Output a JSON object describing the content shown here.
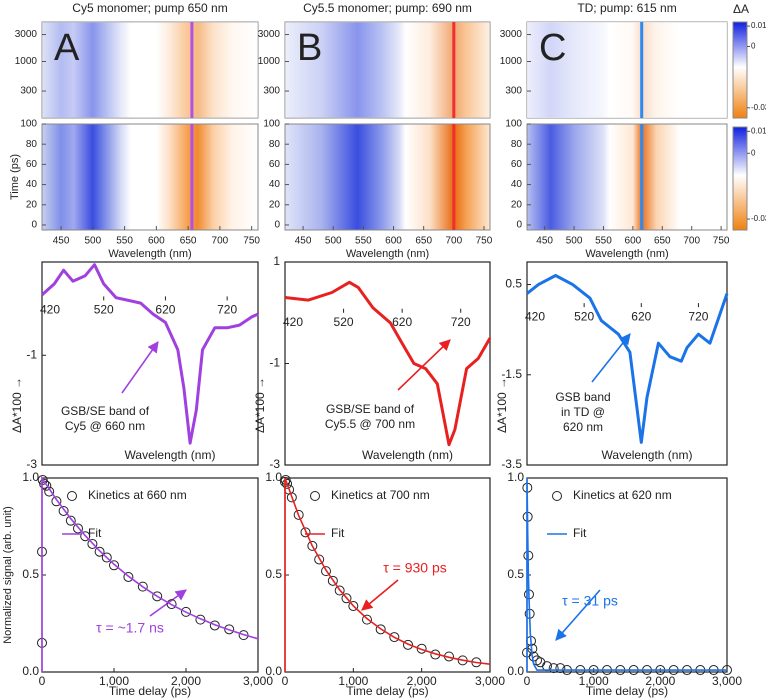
{
  "chart_data": [
    {
      "type": "heatmap",
      "title": "Cy5 monomer; pump 650 nm",
      "panel_label": "A",
      "xlabel": "Wavelength (nm)",
      "ylabel": "Time (ps)",
      "xlim": [
        420,
        760
      ],
      "xticks": [
        450,
        500,
        550,
        600,
        650,
        700,
        750
      ],
      "log_panel": {
        "ylim": [
          100,
          5000
        ],
        "yticks": [
          300,
          1000,
          3000
        ],
        "log": true
      },
      "ylim": [
        -5,
        100
      ],
      "yticks": [
        0,
        20,
        40,
        60,
        80,
        100
      ],
      "pump_line": 656,
      "pump_color": "#b050e8"
    },
    {
      "type": "heatmap",
      "title": "Cy5.5 monomer; pump: 690 nm",
      "panel_label": "B",
      "xlabel": "Wavelength (nm)",
      "xlim": [
        420,
        760
      ],
      "xticks": [
        450,
        500,
        550,
        600,
        650,
        700,
        750
      ],
      "log_panel": {
        "ylim": [
          100,
          5000
        ],
        "yticks": [
          300,
          1000,
          3000
        ],
        "log": true
      },
      "ylim": [
        -5,
        100
      ],
      "yticks": [
        0,
        20,
        40,
        60,
        80,
        100
      ],
      "pump_line": 700,
      "pump_color": "#f03030"
    },
    {
      "type": "heatmap",
      "title": "TD; pump: 615 nm",
      "panel_label": "C",
      "xlabel": "Wavelength (nm)",
      "xlim": [
        420,
        760
      ],
      "xticks": [
        450,
        500,
        550,
        600,
        650,
        700,
        750
      ],
      "log_panel": {
        "ylim": [
          100,
          5000
        ],
        "yticks": [
          300,
          1000,
          3000
        ],
        "log": true
      },
      "ylim": [
        -5,
        100
      ],
      "yticks": [
        0,
        20,
        40,
        60,
        80,
        100
      ],
      "pump_line": 615,
      "pump_color": "#2a8af0",
      "colorbar": {
        "label": "ΔA",
        "lim": [
          -0.035,
          0.012
        ],
        "ticks": [
          0.01,
          0,
          -0.03
        ]
      }
    },
    {
      "type": "line",
      "xlabel": "Wavelength (nm)",
      "ylabel": "ΔA*100 →",
      "color": "#a040e0",
      "xlim": [
        420,
        770
      ],
      "xticks": [
        420,
        520,
        620,
        720
      ],
      "ylim": [
        -3,
        0.7
      ],
      "yticks": [
        -1,
        -3
      ],
      "x": [
        420,
        440,
        455,
        470,
        490,
        505,
        520,
        540,
        560,
        580,
        600,
        620,
        640,
        650,
        660,
        670,
        680,
        700,
        720,
        740,
        760,
        770
      ],
      "values": [
        0.1,
        0.3,
        0.55,
        0.35,
        0.45,
        0.65,
        0.3,
        0.05,
        0,
        -0.05,
        -0.25,
        -0.4,
        -0.9,
        -1.6,
        -2.6,
        -2.0,
        -0.9,
        -0.5,
        -0.5,
        -0.45,
        -0.3,
        -0.25
      ],
      "annotation": [
        "GSB/SE band of",
        "Cy5 @ 660 nm"
      ]
    },
    {
      "type": "line",
      "xlabel": "Wavelength (nm)",
      "ylabel": "ΔA*100 →",
      "color": "#e82020",
      "xlim": [
        420,
        770
      ],
      "xticks": [
        420,
        520,
        620,
        720
      ],
      "ylim": [
        -3,
        1
      ],
      "yticks": [
        1,
        -1,
        -3
      ],
      "x": [
        420,
        460,
        500,
        530,
        545,
        570,
        600,
        620,
        640,
        660,
        680,
        700,
        710,
        730,
        750,
        770
      ],
      "values": [
        0.3,
        0.25,
        0.4,
        0.6,
        0.5,
        0.1,
        -0.2,
        -0.6,
        -1.0,
        -1.1,
        -1.4,
        -2.6,
        -2.3,
        -1.1,
        -0.9,
        -0.5
      ],
      "annotation": [
        "GSB/SE band of",
        "Cy5.5 @ 700 nm"
      ]
    },
    {
      "type": "line",
      "xlabel": "Wavelength (nm)",
      "ylabel": "ΔA*100 →",
      "color": "#1a73e8",
      "xlim": [
        420,
        770
      ],
      "xticks": [
        420,
        520,
        620,
        720
      ],
      "ylim": [
        -3.5,
        1
      ],
      "yticks": [
        0.5,
        -1.5,
        -3.5
      ],
      "x": [
        420,
        440,
        470,
        500,
        530,
        550,
        580,
        600,
        610,
        620,
        630,
        650,
        670,
        690,
        700,
        720,
        740,
        770
      ],
      "values": [
        0.3,
        0.5,
        0.7,
        0.5,
        0.2,
        -0.3,
        -0.6,
        -1.0,
        -2.0,
        -3.0,
        -2.0,
        -0.8,
        -1.1,
        -1.2,
        -0.9,
        -0.6,
        -0.8,
        0.3
      ],
      "annotation": [
        "GSB band",
        "in TD @",
        "620 nm"
      ]
    },
    {
      "type": "scatter",
      "xlabel": "Time delay (ps)",
      "ylabel": "Normalized signal (arb. unit)",
      "xlim": [
        0,
        3000
      ],
      "xticks": [
        0,
        {
          "value": 1000,
          "label": "1,000"
        },
        {
          "value": 2000,
          "label": "2,000"
        },
        {
          "value": 3000,
          "label": "3,000"
        }
      ],
      "ylim": [
        0,
        1
      ],
      "yticks": [
        {
          "value": 0,
          "label": "0.0"
        },
        0.5,
        {
          "value": 1,
          "label": "1.0"
        }
      ],
      "series": [
        {
          "name": "Kinetics at 660 nm",
          "color": "#222222",
          "marker": "circle",
          "x": [
            0,
            0,
            10,
            30,
            60,
            100,
            200,
            300,
            400,
            500,
            600,
            700,
            800,
            900,
            1000,
            1200,
            1400,
            1600,
            1800,
            2000,
            2200,
            2400,
            2600,
            2800
          ],
          "values": [
            0.15,
            0.62,
            0.99,
            0.97,
            0.96,
            0.93,
            0.88,
            0.83,
            0.78,
            0.74,
            0.7,
            0.66,
            0.62,
            0.59,
            0.55,
            0.49,
            0.44,
            0.39,
            0.35,
            0.31,
            0.27,
            0.24,
            0.22,
            0.19
          ]
        },
        {
          "name": "Fit",
          "color": "#a040e0",
          "marker": "line",
          "x": [
            0,
            0,
            200,
            400,
            600,
            800,
            1000,
            1200,
            1400,
            1600,
            1800,
            2000,
            2200,
            2400,
            2600,
            2800,
            3000
          ],
          "values": [
            0,
            1.0,
            0.889,
            0.79,
            0.703,
            0.625,
            0.555,
            0.494,
            0.439,
            0.39,
            0.347,
            0.308,
            0.274,
            0.244,
            0.217,
            0.193,
            0.171
          ]
        }
      ],
      "annotation": "τ = ~1.7 ns"
    },
    {
      "type": "scatter",
      "xlabel": "Time delay (ps)",
      "xlim": [
        0,
        3000
      ],
      "xticks": [
        0,
        {
          "value": 1000,
          "label": "1,000"
        },
        {
          "value": 2000,
          "label": "2,000"
        },
        {
          "value": 3000,
          "label": "3,000"
        }
      ],
      "ylim": [
        0,
        1
      ],
      "yticks": [
        {
          "value": 0,
          "label": "0.0"
        },
        0.5,
        {
          "value": 1,
          "label": "1.0"
        }
      ],
      "series": [
        {
          "name": "Kinetics at 700 nm",
          "color": "#222222",
          "marker": "circle",
          "x": [
            0,
            10,
            30,
            60,
            100,
            200,
            300,
            400,
            500,
            600,
            700,
            800,
            900,
            1000,
            1200,
            1400,
            1600,
            1800,
            2000,
            2200,
            2400,
            2600,
            2800
          ],
          "values": [
            0.98,
            0.99,
            0.97,
            0.94,
            0.9,
            0.81,
            0.72,
            0.65,
            0.58,
            0.52,
            0.47,
            0.42,
            0.38,
            0.34,
            0.27,
            0.22,
            0.18,
            0.14,
            0.12,
            0.09,
            0.08,
            0.06,
            0.05
          ]
        },
        {
          "name": "Fit",
          "color": "#e82020",
          "marker": "line",
          "x": [
            0,
            0,
            200,
            400,
            600,
            800,
            1000,
            1200,
            1400,
            1600,
            1800,
            2000,
            2200,
            2400,
            2600,
            2800,
            3000
          ],
          "values": [
            0,
            1.0,
            0.806,
            0.65,
            0.525,
            0.423,
            0.341,
            0.275,
            0.222,
            0.179,
            0.144,
            0.116,
            0.094,
            0.076,
            0.061,
            0.049,
            0.04
          ]
        }
      ],
      "annotation": "τ = 930 ps"
    },
    {
      "type": "scatter",
      "xlabel": "Time delay (ps)",
      "xlim": [
        0,
        3000
      ],
      "xticks": [
        0,
        {
          "value": 1000,
          "label": "1,000"
        },
        {
          "value": 2000,
          "label": "2,000"
        },
        {
          "value": 3000,
          "label": "3,000"
        }
      ],
      "ylim": [
        0,
        1
      ],
      "yticks": [
        {
          "value": 0,
          "label": "0.0"
        },
        0.5,
        {
          "value": 1,
          "label": "1.0"
        }
      ],
      "series": [
        {
          "name": "Kinetics at 620 nm",
          "color": "#222222",
          "marker": "circle",
          "x": [
            0,
            5,
            10,
            20,
            30,
            40,
            60,
            80,
            100,
            150,
            200,
            300,
            400,
            500,
            600,
            800,
            1000,
            1200,
            1400,
            1600,
            1800,
            2000,
            2200,
            2400,
            2600,
            2800,
            3000
          ],
          "values": [
            0.1,
            0.95,
            0.8,
            0.6,
            0.4,
            0.3,
            0.16,
            0.12,
            0.08,
            0.06,
            0.05,
            0.03,
            0.02,
            0.02,
            0.01,
            0.01,
            0.01,
            0.01,
            0.01,
            0.01,
            0.01,
            0.01,
            0.01,
            0.01,
            0.01,
            0.01,
            0.01
          ]
        },
        {
          "name": "Fit",
          "color": "#1a73e8",
          "marker": "line",
          "x": [
            0,
            0,
            10,
            20,
            30,
            50,
            75,
            100,
            150,
            200,
            300,
            500,
            1000,
            3000
          ],
          "values": [
            0,
            1.0,
            0.72,
            0.52,
            0.38,
            0.2,
            0.09,
            0.04,
            0.01,
            0.01,
            0.01,
            0.01,
            0.01,
            0.01
          ]
        }
      ],
      "annotation": "τ = 31 ps"
    }
  ]
}
